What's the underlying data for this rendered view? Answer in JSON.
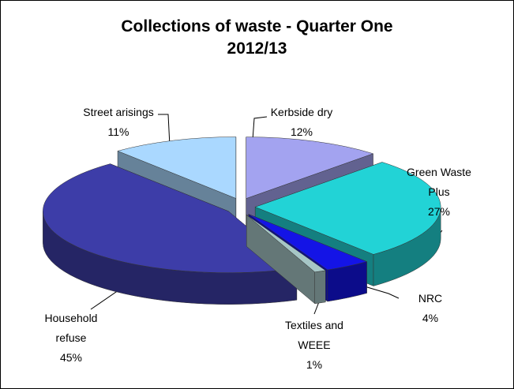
{
  "chart_data": {
    "type": "pie",
    "title": "Collections of waste - Quarter One 2012/13",
    "categories": [
      "Kerbside dry",
      "Green Waste Plus",
      "NRC",
      "Textiles and WEEE",
      "Household refuse",
      "Street arisings"
    ],
    "values": [
      12,
      27,
      4,
      1,
      45,
      11
    ],
    "value_labels": [
      "12%",
      "27%",
      "4%",
      "1%",
      "45%",
      "11%"
    ],
    "colors": [
      "#a3a3f0",
      "#22d3d6",
      "#1414e6",
      "#a6c6c6",
      "#3d3da8",
      "#aad8ff"
    ]
  }
}
